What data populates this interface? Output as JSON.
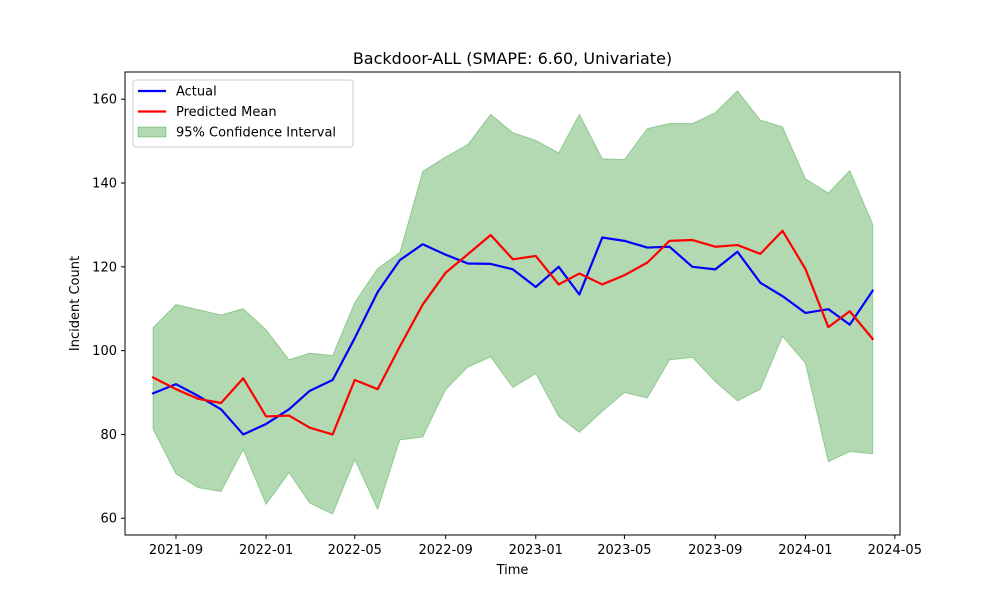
{
  "chart_data": {
    "type": "line",
    "title": "Backdoor-ALL (SMAPE: 6.60, Univariate)",
    "xlabel": "Time",
    "ylabel": "Incident Count",
    "x": [
      "2021-08-01",
      "2021-09-01",
      "2021-10-01",
      "2021-11-01",
      "2021-12-01",
      "2022-01-01",
      "2022-02-01",
      "2022-03-01",
      "2022-04-01",
      "2022-05-01",
      "2022-06-01",
      "2022-07-01",
      "2022-08-01",
      "2022-09-01",
      "2022-10-01",
      "2022-11-01",
      "2022-12-01",
      "2023-01-01",
      "2023-02-01",
      "2023-03-01",
      "2023-04-01",
      "2023-05-01",
      "2023-06-01",
      "2023-07-01",
      "2023-08-01",
      "2023-09-01",
      "2023-10-01",
      "2023-11-01",
      "2023-12-01",
      "2024-01-01",
      "2024-02-01",
      "2024-03-01",
      "2024-04-01"
    ],
    "series": [
      {
        "name": "Actual",
        "color": "#0000ff",
        "values": [
          89.8,
          92.0,
          89.2,
          86.0,
          80.0,
          82.5,
          86.0,
          90.4,
          93.0,
          103.0,
          114.0,
          121.6,
          125.4,
          122.9,
          120.8,
          120.7,
          119.4,
          115.2,
          120.0,
          113.4,
          127.0,
          126.2,
          124.6,
          124.8,
          120.0,
          119.4,
          123.6,
          116.2,
          113.0,
          109.0,
          109.9,
          106.2,
          114.3
        ]
      },
      {
        "name": "Predicted Mean",
        "color": "#ff0000",
        "values": [
          93.6,
          90.8,
          88.5,
          87.5,
          93.4,
          84.3,
          84.5,
          81.6,
          80.0,
          93.0,
          90.8,
          101.0,
          111.0,
          118.6,
          123.0,
          127.6,
          121.8,
          122.6,
          115.8,
          118.4,
          115.8,
          118.0,
          121.0,
          126.2,
          126.4,
          124.8,
          125.2,
          123.1,
          128.6,
          119.5,
          105.6,
          109.4,
          102.8
        ]
      }
    ],
    "band": {
      "name": "95% Confidence Interval",
      "color": "#008000",
      "upper": [
        105.5,
        111.0,
        109.8,
        108.5,
        110.0,
        105.0,
        97.8,
        99.4,
        98.8,
        111.5,
        119.6,
        123.4,
        142.8,
        146.2,
        149.2,
        156.4,
        152.0,
        150.2,
        147.2,
        156.4,
        145.8,
        145.6,
        153.0,
        154.2,
        154.2,
        156.8,
        162.0,
        155.0,
        153.4,
        141.0,
        137.6,
        143.0,
        130.2
      ],
      "lower": [
        81.3,
        70.6,
        67.3,
        66.4,
        76.4,
        63.3,
        70.9,
        63.6,
        61.0,
        74.0,
        62.1,
        78.7,
        79.4,
        90.7,
        96.1,
        98.5,
        91.2,
        94.5,
        84.3,
        80.5,
        85.5,
        90.0,
        88.7,
        97.8,
        98.4,
        92.6,
        88.0,
        90.8,
        103.4,
        97.0,
        73.5,
        75.9,
        75.4
      ]
    },
    "xticks": [
      "2021-09",
      "2022-01",
      "2022-05",
      "2022-09",
      "2023-01",
      "2023-05",
      "2023-09",
      "2024-01",
      "2024-05"
    ],
    "yticks": [
      60,
      80,
      100,
      120,
      140,
      160
    ],
    "ylim": [
      56,
      166.5
    ],
    "xlim": [
      "2021-06-24",
      "2024-05-08"
    ],
    "grid": false,
    "legend_position": "top-left"
  }
}
